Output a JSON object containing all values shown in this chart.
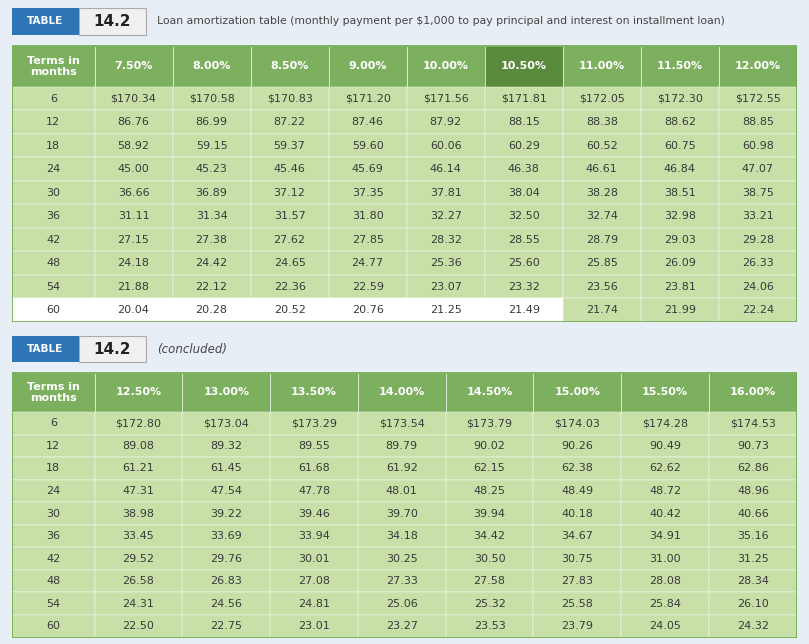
{
  "title1": "Loan amortization table (monthly payment per $1,000 to pay principal and interest on installment loan)",
  "table_label": "TABLE",
  "table_num": "14.2",
  "concluded_label": "(concluded)",
  "table1_headers": [
    "Terms in\nmonths",
    "7.50%",
    "8.00%",
    "8.50%",
    "9.00%",
    "10.00%",
    "10.50%",
    "11.00%",
    "11.50%",
    "12.00%"
  ],
  "table1_highlight_col": 6,
  "table1_rows": [
    [
      "6",
      "$170.34",
      "$170.58",
      "$170.83",
      "$171.20",
      "$171.56",
      "$171.81",
      "$172.05",
      "$172.30",
      "$172.55"
    ],
    [
      "12",
      "86.76",
      "86.99",
      "87.22",
      "87.46",
      "87.92",
      "88.15",
      "88.38",
      "88.62",
      "88.85"
    ],
    [
      "18",
      "58.92",
      "59.15",
      "59.37",
      "59.60",
      "60.06",
      "60.29",
      "60.52",
      "60.75",
      "60.98"
    ],
    [
      "24",
      "45.00",
      "45.23",
      "45.46",
      "45.69",
      "46.14",
      "46.38",
      "46.61",
      "46.84",
      "47.07"
    ],
    [
      "30",
      "36.66",
      "36.89",
      "37.12",
      "37.35",
      "37.81",
      "38.04",
      "38.28",
      "38.51",
      "38.75"
    ],
    [
      "36",
      "31.11",
      "31.34",
      "31.57",
      "31.80",
      "32.27",
      "32.50",
      "32.74",
      "32.98",
      "33.21"
    ],
    [
      "42",
      "27.15",
      "27.38",
      "27.62",
      "27.85",
      "28.32",
      "28.55",
      "28.79",
      "29.03",
      "29.28"
    ],
    [
      "48",
      "24.18",
      "24.42",
      "24.65",
      "24.77",
      "25.36",
      "25.60",
      "25.85",
      "26.09",
      "26.33"
    ],
    [
      "54",
      "21.88",
      "22.12",
      "22.36",
      "22.59",
      "23.07",
      "23.32",
      "23.56",
      "23.81",
      "24.06"
    ],
    [
      "60",
      "20.04",
      "20.28",
      "20.52",
      "20.76",
      "21.25",
      "21.49",
      "21.74",
      "21.99",
      "22.24"
    ]
  ],
  "table2_headers": [
    "Terms in\nmonths",
    "12.50%",
    "13.00%",
    "13.50%",
    "14.00%",
    "14.50%",
    "15.00%",
    "15.50%",
    "16.00%"
  ],
  "table2_rows": [
    [
      "6",
      "$172.80",
      "$173.04",
      "$173.29",
      "$173.54",
      "$173.79",
      "$174.03",
      "$174.28",
      "$174.53"
    ],
    [
      "12",
      "89.08",
      "89.32",
      "89.55",
      "89.79",
      "90.02",
      "90.26",
      "90.49",
      "90.73"
    ],
    [
      "18",
      "61.21",
      "61.45",
      "61.68",
      "61.92",
      "62.15",
      "62.38",
      "62.62",
      "62.86"
    ],
    [
      "24",
      "47.31",
      "47.54",
      "47.78",
      "48.01",
      "48.25",
      "48.49",
      "48.72",
      "48.96"
    ],
    [
      "30",
      "38.98",
      "39.22",
      "39.46",
      "39.70",
      "39.94",
      "40.18",
      "40.42",
      "40.66"
    ],
    [
      "36",
      "33.45",
      "33.69",
      "33.94",
      "34.18",
      "34.42",
      "34.67",
      "34.91",
      "35.16"
    ],
    [
      "42",
      "29.52",
      "29.76",
      "30.01",
      "30.25",
      "30.50",
      "30.75",
      "31.00",
      "31.25"
    ],
    [
      "48",
      "26.58",
      "26.83",
      "27.08",
      "27.33",
      "27.58",
      "27.83",
      "28.08",
      "28.34"
    ],
    [
      "54",
      "24.31",
      "24.56",
      "24.81",
      "25.06",
      "25.32",
      "25.58",
      "25.84",
      "26.10"
    ],
    [
      "60",
      "22.50",
      "22.75",
      "23.01",
      "23.27",
      "23.53",
      "23.79",
      "24.05",
      "24.32"
    ]
  ],
  "header_bg": "#7cb05e",
  "header_highlight_bg": "#5a8a3c",
  "row_bg": "#c8dfa8",
  "row_highlight_bg": "#b8cf98",
  "last_row_bg": "#ffffff",
  "last_row_highlight_bg": "#c8dfa8",
  "border_color": "#6aaa4a",
  "outer_border_color": "#6aaa4a",
  "header_text_color": "#ffffff",
  "cell_text_color": "#3a3a3a",
  "table_badge_bg": "#2e75b6",
  "table_badge_text": "#ffffff",
  "table_num_bg": "#f0f0f0",
  "table_num_border": "#aaaaaa",
  "page_bg": "#e8eef5",
  "title_text_color": "#444444",
  "font_size_header": 8.0,
  "font_size_cell": 8.0,
  "font_size_badge": 7.5,
  "font_size_tablenum": 11.0,
  "font_size_title": 7.8,
  "font_size_concluded": 8.5
}
